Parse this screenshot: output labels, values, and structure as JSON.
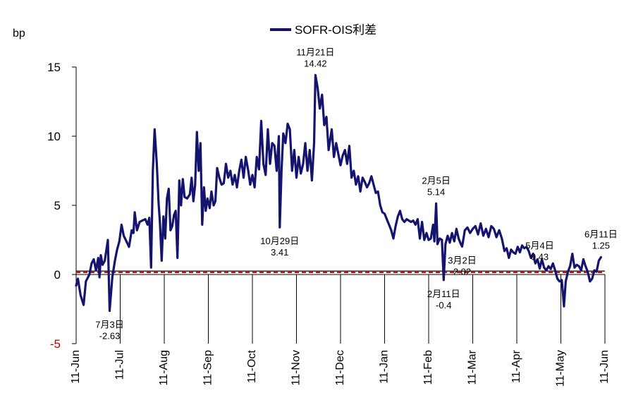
{
  "chart_data": {
    "type": "line",
    "unit_label": "bp",
    "ylim": [
      -5,
      15
    ],
    "yticks": [
      "-5",
      "0",
      "5",
      "10",
      "15"
    ],
    "x_tick_labels": [
      "11-Jun",
      "11-Jul",
      "11-Aug",
      "11-Sep",
      "11-Oct",
      "11-Nov",
      "11-Dec",
      "11-Jan",
      "11-Feb",
      "11-Mar",
      "11-Apr",
      "11-May",
      "11-Jun"
    ],
    "legend": {
      "position": "top",
      "entries": [
        "SOFR-OIS利差"
      ]
    },
    "series": [
      {
        "name": "SOFR-OIS利差",
        "color": "#14146e",
        "x_note": "month index from 11-Jun (0) to next 11-Jun (12)",
        "points": [
          [
            0.0,
            -0.8
          ],
          [
            0.04,
            -0.3
          ],
          [
            0.1,
            -1.5
          ],
          [
            0.17,
            -2.2
          ],
          [
            0.22,
            -0.5
          ],
          [
            0.3,
            0.0
          ],
          [
            0.35,
            0.8
          ],
          [
            0.4,
            1.1
          ],
          [
            0.45,
            0.3
          ],
          [
            0.5,
            1.2
          ],
          [
            0.53,
            -0.2
          ],
          [
            0.56,
            1.4
          ],
          [
            0.6,
            0.7
          ],
          [
            0.65,
            1.0
          ],
          [
            0.72,
            2.5
          ],
          [
            0.76,
            -2.63
          ],
          [
            0.82,
            -0.2
          ],
          [
            0.88,
            1.0
          ],
          [
            0.93,
            1.8
          ],
          [
            0.98,
            2.4
          ],
          [
            1.03,
            3.6
          ],
          [
            1.08,
            2.8
          ],
          [
            1.14,
            2.4
          ],
          [
            1.2,
            2.0
          ],
          [
            1.26,
            3.2
          ],
          [
            1.3,
            3.0
          ],
          [
            1.33,
            4.5
          ],
          [
            1.38,
            3.2
          ],
          [
            1.44,
            3.8
          ],
          [
            1.5,
            3.9
          ],
          [
            1.57,
            4.0
          ],
          [
            1.62,
            3.6
          ],
          [
            1.66,
            4.1
          ],
          [
            1.7,
            0.5
          ],
          [
            1.74,
            7.5
          ],
          [
            1.78,
            10.5
          ],
          [
            1.83,
            8.0
          ],
          [
            1.87,
            5.2
          ],
          [
            1.9,
            3.8
          ],
          [
            1.94,
            1.0
          ],
          [
            1.98,
            4.2
          ],
          [
            2.02,
            2.6
          ],
          [
            2.06,
            5.5
          ],
          [
            2.1,
            6.2
          ],
          [
            2.14,
            3.2
          ],
          [
            2.18,
            3.5
          ],
          [
            2.22,
            4.3
          ],
          [
            2.26,
            4.6
          ],
          [
            2.3,
            1.2
          ],
          [
            2.34,
            6.8
          ],
          [
            2.38,
            5.0
          ],
          [
            2.42,
            6.9
          ],
          [
            2.46,
            5.6
          ],
          [
            2.52,
            5.5
          ],
          [
            2.58,
            5.8
          ],
          [
            2.62,
            7.0
          ],
          [
            2.66,
            5.3
          ],
          [
            2.7,
            6.5
          ],
          [
            2.74,
            10.3
          ],
          [
            2.78,
            7.5
          ],
          [
            2.82,
            9.5
          ],
          [
            2.86,
            3.6
          ],
          [
            2.9,
            6.3
          ],
          [
            2.94,
            4.6
          ],
          [
            2.98,
            5.5
          ],
          [
            3.03,
            4.8
          ],
          [
            3.07,
            6.0
          ],
          [
            3.12,
            5.0
          ],
          [
            3.16,
            5.3
          ],
          [
            3.2,
            7.7
          ],
          [
            3.25,
            7.0
          ],
          [
            3.3,
            6.5
          ],
          [
            3.35,
            6.6
          ],
          [
            3.4,
            8.0
          ],
          [
            3.45,
            7.0
          ],
          [
            3.5,
            7.5
          ],
          [
            3.55,
            6.5
          ],
          [
            3.6,
            7.2
          ],
          [
            3.65,
            6.3
          ],
          [
            3.7,
            7.5
          ],
          [
            3.75,
            8.3
          ],
          [
            3.8,
            7.0
          ],
          [
            3.85,
            8.5
          ],
          [
            3.9,
            7.6
          ],
          [
            3.95,
            6.5
          ],
          [
            4.0,
            7.2
          ],
          [
            4.05,
            6.3
          ],
          [
            4.1,
            8.5
          ],
          [
            4.15,
            7.6
          ],
          [
            4.2,
            11.1
          ],
          [
            4.25,
            8.0
          ],
          [
            4.3,
            7.2
          ],
          [
            4.35,
            10.5
          ],
          [
            4.4,
            8.0
          ],
          [
            4.45,
            9.5
          ],
          [
            4.5,
            9.3
          ],
          [
            4.55,
            7.5
          ],
          [
            4.6,
            10.0
          ],
          [
            4.62,
            3.41
          ],
          [
            4.66,
            7.5
          ],
          [
            4.7,
            10.2
          ],
          [
            4.75,
            9.5
          ],
          [
            4.8,
            10.9
          ],
          [
            4.85,
            10.5
          ],
          [
            4.9,
            7.5
          ],
          [
            4.95,
            9.0
          ],
          [
            5.0,
            7.0
          ],
          [
            5.05,
            8.5
          ],
          [
            5.1,
            7.3
          ],
          [
            5.15,
            8.0
          ],
          [
            5.2,
            9.5
          ],
          [
            5.25,
            7.5
          ],
          [
            5.3,
            9.0
          ],
          [
            5.35,
            6.8
          ],
          [
            5.4,
            9.5
          ],
          [
            5.43,
            14.42
          ],
          [
            5.48,
            13.5
          ],
          [
            5.53,
            12.0
          ],
          [
            5.58,
            13.0
          ],
          [
            5.63,
            10.8
          ],
          [
            5.68,
            11.4
          ],
          [
            5.73,
            9.0
          ],
          [
            5.8,
            10.5
          ],
          [
            5.85,
            8.5
          ],
          [
            5.9,
            9.5
          ],
          [
            5.95,
            8.7
          ],
          [
            6.0,
            7.9
          ],
          [
            6.05,
            8.6
          ],
          [
            6.1,
            9.0
          ],
          [
            6.15,
            8.0
          ],
          [
            6.2,
            9.3
          ],
          [
            6.25,
            7.0
          ],
          [
            6.3,
            7.5
          ],
          [
            6.35,
            6.5
          ],
          [
            6.4,
            7.1
          ],
          [
            6.45,
            6.0
          ],
          [
            6.5,
            7.0
          ],
          [
            6.55,
            6.7
          ],
          [
            6.6,
            6.3
          ],
          [
            6.65,
            6.6
          ],
          [
            6.7,
            7.1
          ],
          [
            6.75,
            6.5
          ],
          [
            6.8,
            5.9
          ],
          [
            6.85,
            6.0
          ],
          [
            6.9,
            5.0
          ],
          [
            6.95,
            4.5
          ],
          [
            7.0,
            4.4
          ],
          [
            7.05,
            4.0
          ],
          [
            7.1,
            3.6
          ],
          [
            7.15,
            3.2
          ],
          [
            7.2,
            2.6
          ],
          [
            7.25,
            3.5
          ],
          [
            7.3,
            4.2
          ],
          [
            7.35,
            4.6
          ],
          [
            7.4,
            4.0
          ],
          [
            7.45,
            3.8
          ],
          [
            7.5,
            4.0
          ],
          [
            7.55,
            3.9
          ],
          [
            7.6,
            3.8
          ],
          [
            7.65,
            3.9
          ],
          [
            7.7,
            3.6
          ],
          [
            7.75,
            4.0
          ],
          [
            7.8,
            2.6
          ],
          [
            7.85,
            3.8
          ],
          [
            7.9,
            2.5
          ],
          [
            7.95,
            3.0
          ],
          [
            8.0,
            2.5
          ],
          [
            8.05,
            2.6
          ],
          [
            8.1,
            3.6
          ],
          [
            8.13,
            2.4
          ],
          [
            8.17,
            5.14
          ],
          [
            8.2,
            2.2
          ],
          [
            8.25,
            2.6
          ],
          [
            8.3,
            2.5
          ],
          [
            8.34,
            -0.4
          ],
          [
            8.38,
            2.2
          ],
          [
            8.43,
            2.8
          ],
          [
            8.48,
            2.3
          ],
          [
            8.53,
            3.0
          ],
          [
            8.58,
            2.4
          ],
          [
            8.63,
            3.3
          ],
          [
            8.68,
            2.6
          ],
          [
            8.73,
            2.2
          ],
          [
            8.76,
            2.02
          ],
          [
            8.82,
            3.2
          ],
          [
            8.88,
            3.4
          ],
          [
            8.94,
            3.0
          ],
          [
            9.0,
            3.3
          ],
          [
            9.06,
            3.5
          ],
          [
            9.12,
            2.9
          ],
          [
            9.18,
            3.7
          ],
          [
            9.24,
            2.8
          ],
          [
            9.3,
            3.3
          ],
          [
            9.36,
            2.7
          ],
          [
            9.42,
            3.5
          ],
          [
            9.48,
            3.3
          ],
          [
            9.54,
            2.7
          ],
          [
            9.6,
            3.2
          ],
          [
            9.66,
            2.6
          ],
          [
            9.72,
            1.7
          ],
          [
            9.77,
            1.9
          ],
          [
            9.82,
            1.2
          ],
          [
            9.87,
            1.8
          ],
          [
            9.92,
            1.6
          ],
          [
            9.97,
            1.5
          ],
          [
            10.02,
            2.0
          ],
          [
            10.07,
            1.6
          ],
          [
            10.12,
            2.1
          ],
          [
            10.17,
            1.9
          ],
          [
            10.22,
            2.0
          ],
          [
            10.27,
            1.7
          ],
          [
            10.32,
            1.2
          ],
          [
            10.37,
            1.5
          ],
          [
            10.42,
            0.8
          ],
          [
            10.47,
            1.1
          ],
          [
            10.52,
            0.43
          ],
          [
            10.57,
            1.1
          ],
          [
            10.62,
            0.5
          ],
          [
            10.67,
            0.3
          ],
          [
            10.72,
            0.6
          ],
          [
            10.77,
            0.4
          ],
          [
            10.82,
            0.8
          ],
          [
            10.87,
            0.3
          ],
          [
            10.92,
            -0.3
          ],
          [
            10.97,
            -0.5
          ],
          [
            11.02,
            -0.4
          ],
          [
            11.07,
            -2.3
          ],
          [
            11.11,
            -0.5
          ],
          [
            11.16,
            0.2
          ],
          [
            11.21,
            0.6
          ],
          [
            11.26,
            1.5
          ],
          [
            11.31,
            0.5
          ],
          [
            11.36,
            0.7
          ],
          [
            11.41,
            0.6
          ],
          [
            11.46,
            0.3
          ],
          [
            11.51,
            1.1
          ],
          [
            11.56,
            0.6
          ],
          [
            11.61,
            0.2
          ],
          [
            11.66,
            -0.5
          ],
          [
            11.71,
            -0.3
          ],
          [
            11.76,
            0.3
          ],
          [
            11.81,
            0.2
          ],
          [
            11.86,
            1.0
          ],
          [
            11.91,
            1.25
          ]
        ]
      }
    ],
    "reference_lines": [
      {
        "style": "solid",
        "color": "#000000",
        "value": 0.25
      },
      {
        "style": "dashed",
        "color": "#cc1010",
        "value": 0.15
      }
    ],
    "annotations": [
      {
        "date": "7月3日",
        "value": "-2.63",
        "x": 0.76,
        "y": -2.63,
        "place": "below"
      },
      {
        "date": "10月29日",
        "value": "3.41",
        "x": 4.62,
        "y": 3.41,
        "place": "below"
      },
      {
        "date": "11月21日",
        "value": "14.42",
        "x": 5.43,
        "y": 14.42,
        "place": "above"
      },
      {
        "date": "2月5日",
        "value": "5.14",
        "x": 8.17,
        "y": 5.14,
        "place": "above"
      },
      {
        "date": "2月11日",
        "value": "-0.4",
        "x": 8.34,
        "y": -0.4,
        "place": "below"
      },
      {
        "date": "3月2日",
        "value": "2.02",
        "x": 8.76,
        "y": 2.02,
        "place": "below"
      },
      {
        "date": "5月4日",
        "value": "0.43",
        "x": 10.52,
        "y": 0.43,
        "place": "above"
      },
      {
        "date": "6月11日",
        "value": "1.25",
        "x": 11.91,
        "y": 1.25,
        "place": "above"
      }
    ]
  }
}
